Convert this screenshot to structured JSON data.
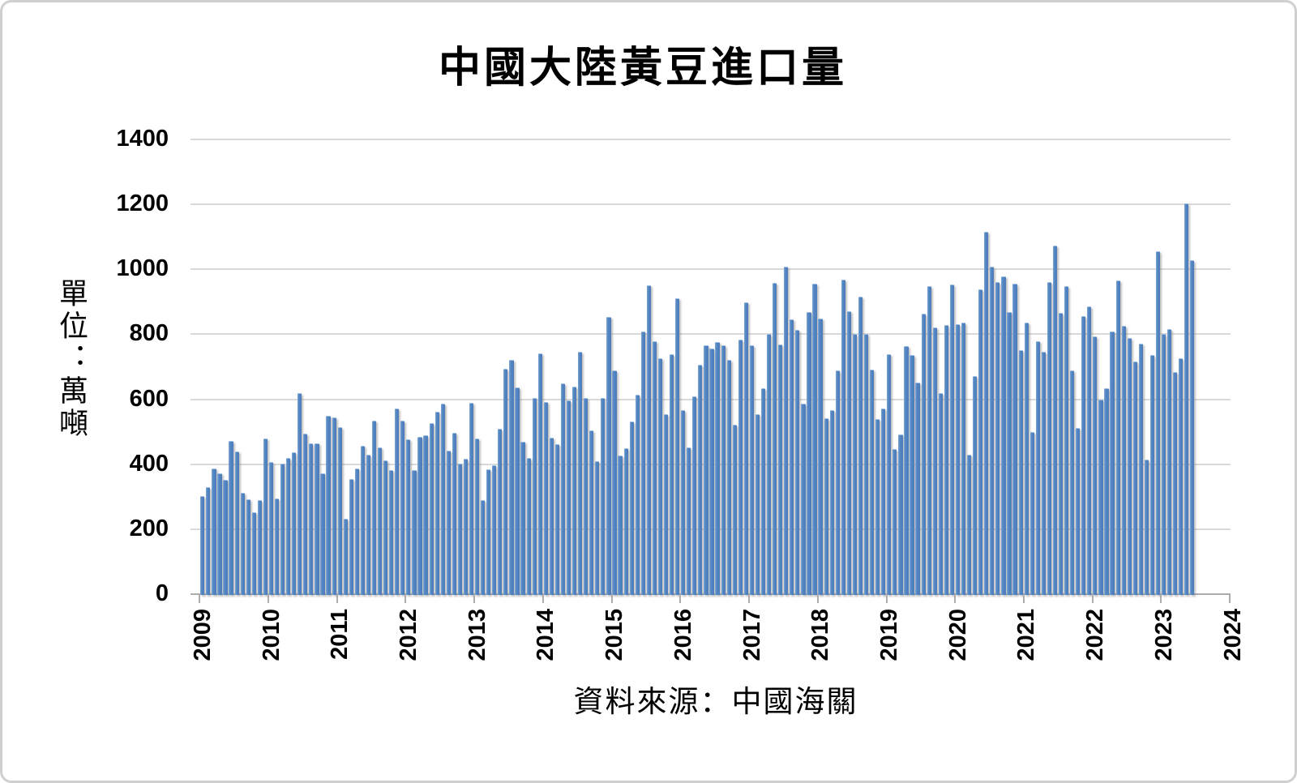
{
  "title": "中國大陸黃豆進口量",
  "y_axis": {
    "unit_label": "單位：萬噸",
    "tick_labels": [
      "0",
      "200",
      "400",
      "600",
      "800",
      "1000",
      "1200",
      "1400"
    ],
    "min": 0,
    "max": 1400,
    "step": 200
  },
  "x_axis": {
    "year_labels": [
      "2009",
      "2010",
      "2011",
      "2012",
      "2013",
      "2014",
      "2015",
      "2016",
      "2017",
      "2018",
      "2019",
      "2020",
      "2021",
      "2022",
      "2023",
      "2024"
    ]
  },
  "source": "資料來源：中國海關",
  "colors": {
    "bar": "#4d7dbc",
    "bar_highlight": "#85aad4",
    "gridline": "#d9d9d9",
    "axis": "#adadad",
    "text": "#000000",
    "background": "#ffffff"
  },
  "chart_data": {
    "type": "bar",
    "title": "中國大陸黃豆進口量",
    "ylabel": "單位：萬噸",
    "xlabel": "",
    "legend": null,
    "grid": true,
    "ylim": [
      0,
      1400
    ],
    "y_tick_step": 200,
    "x_start": "2009-01",
    "x_end": "2023-06",
    "x_year_ticks": [
      2009,
      2010,
      2011,
      2012,
      2013,
      2014,
      2015,
      2016,
      2017,
      2018,
      2019,
      2020,
      2021,
      2022,
      2023,
      2024
    ],
    "source_note": "資料來源：中國海關",
    "series": [
      {
        "name": "中國大陸黃豆進口量(萬噸)",
        "monthly_values_by_year": {
          "2009": [
            302,
            329,
            386,
            371,
            352,
            471,
            439,
            313,
            291,
            253,
            289,
            478
          ],
          "2010": [
            408,
            295,
            401,
            419,
            437,
            620,
            495,
            464,
            465,
            373,
            548,
            543
          ],
          "2011": [
            514,
            232,
            355,
            388,
            457,
            430,
            535,
            451,
            413,
            382,
            572,
            534
          ],
          "2012": [
            477,
            383,
            483,
            488,
            526,
            562,
            587,
            442,
            497,
            403,
            416,
            589
          ],
          "2013": [
            478,
            290,
            384,
            398,
            510,
            693,
            720,
            637,
            470,
            419,
            603,
            740
          ],
          "2014": [
            591,
            481,
            462,
            650,
            597,
            639,
            747,
            603,
            503,
            410,
            603,
            853
          ],
          "2015": [
            688,
            426,
            450,
            531,
            613,
            809,
            950,
            778,
            726,
            553,
            739,
            912
          ],
          "2016": [
            566,
            451,
            610,
            707,
            766,
            756,
            776,
            767,
            720,
            521,
            784,
            899
          ],
          "2017": [
            766,
            554,
            633,
            802,
            959,
            768,
            1008,
            845,
            813,
            586,
            868,
            955
          ],
          "2018": [
            848,
            542,
            566,
            690,
            969,
            870,
            801,
            915,
            801,
            692,
            538,
            572
          ],
          "2019": [
            738,
            446,
            492,
            764,
            736,
            651,
            864,
            948,
            820,
            618,
            828,
            954
          ],
          "2020": [
            830,
            835,
            428,
            672,
            938,
            1116,
            1009,
            960,
            979,
            869,
            957,
            752
          ],
          "2021": [
            835,
            500,
            778,
            745,
            961,
            1072,
            867,
            949,
            688,
            511,
            857,
            887
          ],
          "2022": [
            794,
            600,
            635,
            808,
            967,
            825,
            788,
            717,
            772,
            414,
            735,
            1056
          ],
          "2023": [
            800,
            817,
            685,
            726,
            1202,
            1027
          ]
        }
      }
    ]
  }
}
